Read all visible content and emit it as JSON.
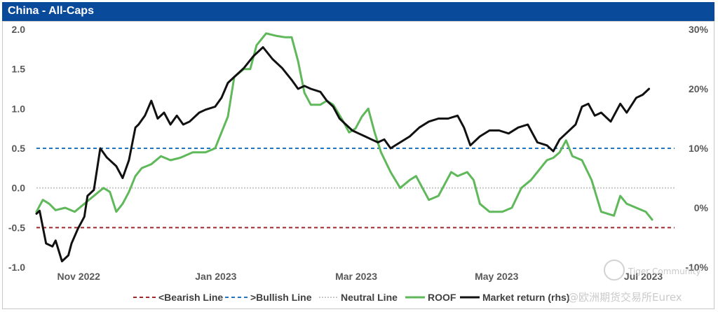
{
  "chart_data": {
    "type": "line",
    "title": "China - All-Caps",
    "y_left": {
      "ylim": [
        -1.0,
        2.0
      ],
      "ticks": [
        "2.0",
        "1.5",
        "1.0",
        "0.5",
        "0.0",
        "-0.5",
        "-1.0"
      ],
      "tick_values": [
        2.0,
        1.5,
        1.0,
        0.5,
        0.0,
        -0.5,
        -1.0
      ]
    },
    "y_right": {
      "ylim": [
        -10,
        30
      ],
      "ticks": [
        "30%",
        "20%",
        "10%",
        "0%",
        "-10%"
      ],
      "tick_values": [
        30,
        20,
        10,
        0,
        -10
      ]
    },
    "x_ticks": [
      "Nov 2022",
      "Jan 2023",
      "Mar 2023",
      "May 2023",
      "Jul 2023"
    ],
    "x_tick_positions": [
      0.02,
      0.235,
      0.455,
      0.675,
      0.905
    ],
    "hlines": [
      {
        "name": "<Bearish Line",
        "value": -0.5,
        "color": "#a0282a",
        "style": "dashed"
      },
      {
        "name": ">Bullish Line",
        "value": 0.5,
        "color": "#1f77c4",
        "style": "dashed"
      },
      {
        "name": "Neutral Line",
        "value": 0.0,
        "color": "#c8c8c8",
        "style": "dotted"
      }
    ],
    "series": [
      {
        "name": "ROOF",
        "axis": "left",
        "color": "#5fb85a",
        "points": [
          [
            0.0,
            -0.3
          ],
          [
            0.01,
            -0.15
          ],
          [
            0.02,
            -0.2
          ],
          [
            0.03,
            -0.28
          ],
          [
            0.045,
            -0.25
          ],
          [
            0.06,
            -0.3
          ],
          [
            0.075,
            -0.2
          ],
          [
            0.09,
            -0.1
          ],
          [
            0.105,
            0.0
          ],
          [
            0.115,
            -0.05
          ],
          [
            0.125,
            -0.3
          ],
          [
            0.135,
            -0.2
          ],
          [
            0.145,
            -0.05
          ],
          [
            0.155,
            0.15
          ],
          [
            0.165,
            0.25
          ],
          [
            0.18,
            0.3
          ],
          [
            0.195,
            0.4
          ],
          [
            0.21,
            0.35
          ],
          [
            0.225,
            0.38
          ],
          [
            0.245,
            0.45
          ],
          [
            0.265,
            0.45
          ],
          [
            0.28,
            0.5
          ],
          [
            0.29,
            0.7
          ],
          [
            0.3,
            0.9
          ],
          [
            0.31,
            1.4
          ],
          [
            0.325,
            1.5
          ],
          [
            0.335,
            1.5
          ],
          [
            0.345,
            1.8
          ],
          [
            0.36,
            1.95
          ],
          [
            0.375,
            1.92
          ],
          [
            0.39,
            1.9
          ],
          [
            0.4,
            1.9
          ],
          [
            0.41,
            1.6
          ],
          [
            0.42,
            1.2
          ],
          [
            0.43,
            1.05
          ],
          [
            0.445,
            1.05
          ],
          [
            0.455,
            1.1
          ],
          [
            0.465,
            1.05
          ],
          [
            0.48,
            0.85
          ],
          [
            0.49,
            0.7
          ],
          [
            0.5,
            0.75
          ],
          [
            0.51,
            0.9
          ],
          [
            0.52,
            1.0
          ],
          [
            0.53,
            0.7
          ],
          [
            0.54,
            0.45
          ],
          [
            0.555,
            0.2
          ],
          [
            0.57,
            0.0
          ],
          [
            0.585,
            0.1
          ],
          [
            0.595,
            0.15
          ],
          [
            0.605,
            0.0
          ],
          [
            0.615,
            -0.15
          ],
          [
            0.63,
            -0.1
          ],
          [
            0.64,
            0.05
          ],
          [
            0.65,
            0.2
          ],
          [
            0.66,
            0.15
          ],
          [
            0.675,
            0.2
          ],
          [
            0.685,
            0.1
          ],
          [
            0.695,
            -0.2
          ],
          [
            0.71,
            -0.3
          ],
          [
            0.73,
            -0.3
          ],
          [
            0.745,
            -0.25
          ],
          [
            0.76,
            0.0
          ],
          [
            0.775,
            0.1
          ],
          [
            0.79,
            0.25
          ],
          [
            0.8,
            0.35
          ],
          [
            0.81,
            0.38
          ],
          [
            0.82,
            0.45
          ],
          [
            0.83,
            0.6
          ],
          [
            0.84,
            0.4
          ],
          [
            0.855,
            0.35
          ],
          [
            0.87,
            0.1
          ],
          [
            0.885,
            -0.3
          ],
          [
            0.905,
            -0.35
          ],
          [
            0.915,
            -0.1
          ],
          [
            0.925,
            -0.2
          ],
          [
            0.94,
            -0.25
          ],
          [
            0.955,
            -0.3
          ],
          [
            0.965,
            -0.4
          ]
        ]
      },
      {
        "name": "Market return (rhs)",
        "axis": "right",
        "color": "#111111",
        "points": [
          [
            0.0,
            -1.0
          ],
          [
            0.005,
            -0.5
          ],
          [
            0.015,
            -6.0
          ],
          [
            0.025,
            -6.5
          ],
          [
            0.03,
            -5.5
          ],
          [
            0.04,
            -9.0
          ],
          [
            0.05,
            -8.0
          ],
          [
            0.055,
            -6.0
          ],
          [
            0.065,
            -3.5
          ],
          [
            0.075,
            -1.5
          ],
          [
            0.08,
            2.0
          ],
          [
            0.09,
            3.0
          ],
          [
            0.1,
            10.0
          ],
          [
            0.11,
            8.5
          ],
          [
            0.125,
            7.0
          ],
          [
            0.135,
            5.0
          ],
          [
            0.145,
            8.0
          ],
          [
            0.155,
            13.5
          ],
          [
            0.16,
            14.0
          ],
          [
            0.17,
            15.5
          ],
          [
            0.18,
            18.0
          ],
          [
            0.19,
            15.0
          ],
          [
            0.2,
            16.0
          ],
          [
            0.21,
            14.0
          ],
          [
            0.22,
            15.5
          ],
          [
            0.23,
            14.0
          ],
          [
            0.24,
            14.5
          ],
          [
            0.255,
            16.0
          ],
          [
            0.265,
            16.5
          ],
          [
            0.28,
            17.0
          ],
          [
            0.29,
            18.5
          ],
          [
            0.3,
            21.0
          ],
          [
            0.31,
            22.0
          ],
          [
            0.325,
            23.5
          ],
          [
            0.34,
            25.5
          ],
          [
            0.355,
            27.0
          ],
          [
            0.37,
            25.0
          ],
          [
            0.385,
            23.5
          ],
          [
            0.4,
            21.5
          ],
          [
            0.41,
            20.0
          ],
          [
            0.42,
            20.5
          ],
          [
            0.43,
            20.0
          ],
          [
            0.445,
            19.5
          ],
          [
            0.455,
            18.0
          ],
          [
            0.465,
            17.0
          ],
          [
            0.475,
            15.0
          ],
          [
            0.485,
            14.0
          ],
          [
            0.495,
            13.0
          ],
          [
            0.505,
            12.5
          ],
          [
            0.515,
            12.0
          ],
          [
            0.525,
            11.5
          ],
          [
            0.535,
            11.0
          ],
          [
            0.545,
            11.5
          ],
          [
            0.555,
            10.0
          ],
          [
            0.57,
            11.0
          ],
          [
            0.585,
            12.0
          ],
          [
            0.6,
            13.5
          ],
          [
            0.615,
            14.5
          ],
          [
            0.63,
            15.0
          ],
          [
            0.645,
            15.0
          ],
          [
            0.66,
            15.5
          ],
          [
            0.67,
            13.5
          ],
          [
            0.68,
            10.5
          ],
          [
            0.695,
            12.0
          ],
          [
            0.71,
            13.0
          ],
          [
            0.725,
            13.0
          ],
          [
            0.74,
            12.5
          ],
          [
            0.755,
            13.5
          ],
          [
            0.77,
            14.0
          ],
          [
            0.785,
            11.0
          ],
          [
            0.8,
            10.5
          ],
          [
            0.81,
            9.5
          ],
          [
            0.82,
            11.5
          ],
          [
            0.83,
            12.5
          ],
          [
            0.845,
            14.0
          ],
          [
            0.855,
            17.0
          ],
          [
            0.865,
            17.5
          ],
          [
            0.875,
            15.5
          ],
          [
            0.885,
            16.0
          ],
          [
            0.9,
            14.5
          ],
          [
            0.915,
            17.5
          ],
          [
            0.925,
            16.0
          ],
          [
            0.94,
            18.5
          ],
          [
            0.95,
            19.0
          ],
          [
            0.96,
            20.0
          ]
        ]
      }
    ],
    "legend_position": "bottom",
    "grid": false
  },
  "legend": {
    "bearish": "<Bearish Line",
    "bullish": ">Bullish Line",
    "neutral": "Neutral Line",
    "roof": "ROOF",
    "market": "Market return (rhs)"
  },
  "watermark": {
    "community": "Tiger Community",
    "source": "@欧洲期货交易所Eurex"
  }
}
